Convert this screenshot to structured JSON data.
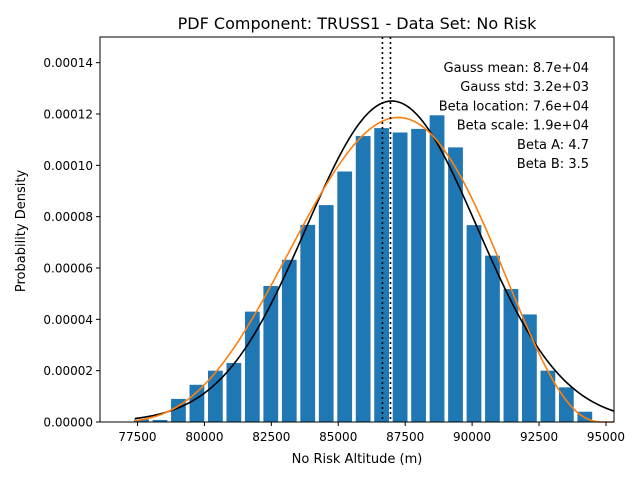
{
  "chart_data": {
    "type": "bar",
    "title": "PDF Component: TRUSS1 - Data Set: No Risk",
    "xlabel": "No Risk Altitude (m)",
    "ylabel": "Probability Density",
    "xlim": [
      76100,
      95300
    ],
    "ylim": [
      0,
      0.00015
    ],
    "xticks": [
      77500,
      80000,
      82500,
      85000,
      87500,
      90000,
      92500,
      95000
    ],
    "xtick_labels": [
      "77500",
      "80000",
      "82500",
      "85000",
      "87500",
      "90000",
      "92500",
      "95000"
    ],
    "yticks": [
      0,
      2e-05,
      4e-05,
      6e-05,
      8e-05,
      0.0001,
      0.00012,
      0.00014
    ],
    "ytick_labels": [
      "0.00000",
      "0.00002",
      "0.00004",
      "0.00006",
      "0.00008",
      "0.00010",
      "0.00012",
      "0.00014"
    ],
    "bar_color": "#1f77b4",
    "bin_width": 690,
    "bins": [
      {
        "x": 77650,
        "value": 1e-06
      },
      {
        "x": 78340,
        "value": 8e-07
      },
      {
        "x": 79030,
        "value": 9e-06
      },
      {
        "x": 79720,
        "value": 1.45e-05
      },
      {
        "x": 80410,
        "value": 2e-05
      },
      {
        "x": 81100,
        "value": 2.3e-05
      },
      {
        "x": 81790,
        "value": 4.3e-05
      },
      {
        "x": 82480,
        "value": 5.3e-05
      },
      {
        "x": 83170,
        "value": 6.32e-05
      },
      {
        "x": 83860,
        "value": 7.68e-05
      },
      {
        "x": 84550,
        "value": 8.45e-05
      },
      {
        "x": 85240,
        "value": 9.76e-05
      },
      {
        "x": 85930,
        "value": 0.0001114
      },
      {
        "x": 86620,
        "value": 0.0001145
      },
      {
        "x": 87310,
        "value": 0.0001128
      },
      {
        "x": 88000,
        "value": 0.0001142
      },
      {
        "x": 88690,
        "value": 0.0001195
      },
      {
        "x": 89380,
        "value": 0.000107
      },
      {
        "x": 90070,
        "value": 7.67e-05
      },
      {
        "x": 90760,
        "value": 6.48e-05
      },
      {
        "x": 91450,
        "value": 5.18e-05
      },
      {
        "x": 92140,
        "value": 4.19e-05
      },
      {
        "x": 92830,
        "value": 2e-05
      },
      {
        "x": 93520,
        "value": 1.35e-05
      },
      {
        "x": 94210,
        "value": 4e-06
      }
    ],
    "curves": [
      {
        "color": "#000000",
        "kind": "gauss",
        "mean": 87000,
        "std": 3190,
        "x_range": [
          77400,
          95300
        ]
      },
      {
        "color": "#ff7f0e",
        "kind": "beta",
        "location": 75900,
        "scale": 19000,
        "a": 4.7,
        "b": 3.5,
        "x_range": [
          77400,
          95300
        ]
      }
    ],
    "vlines": [
      {
        "x": 86650,
        "style": "dotted",
        "color": "#000000"
      },
      {
        "x": 86950,
        "style": "dotted",
        "color": "#000000"
      }
    ],
    "annotations": [
      "Gauss mean: 8.7e+04",
      "Gauss std: 3.2e+03",
      "Beta location: 7.6e+04",
      "Beta scale: 1.9e+04",
      "Beta A: 4.7",
      "Beta B: 3.5"
    ],
    "grid": false
  }
}
